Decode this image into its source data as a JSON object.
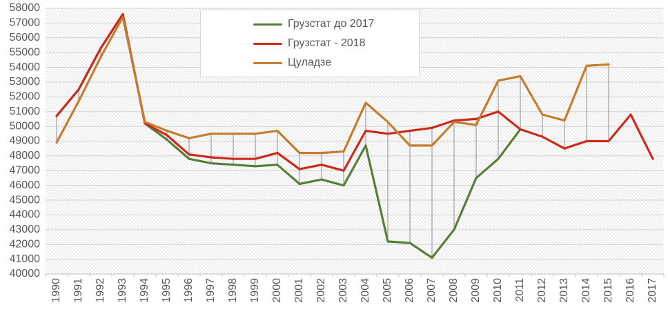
{
  "chart_data": {
    "type": "line",
    "title": "",
    "xlabel": "",
    "ylabel": "",
    "x_categories": [
      "1990",
      "1991",
      "1992",
      "1993",
      "1994",
      "1995",
      "1996",
      "1997",
      "1998",
      "1999",
      "2000",
      "2001",
      "2002",
      "2003",
      "2004",
      "2005",
      "2006",
      "2007",
      "2008",
      "2009",
      "2010",
      "2011",
      "2012",
      "2013",
      "2014",
      "2015",
      "2016",
      "2017"
    ],
    "ylim": [
      40000,
      58000
    ],
    "yticks": [
      40000,
      41000,
      42000,
      43000,
      44000,
      45000,
      46000,
      47000,
      48000,
      49000,
      50000,
      51000,
      52000,
      53000,
      54000,
      55000,
      56000,
      57000,
      58000
    ],
    "grid": "horizontal",
    "legend_position": "top-center",
    "plot_background": "diagonal-hatch",
    "high_low_lines": true,
    "series": [
      {
        "name": "Грузстат до 2017",
        "color": "#567f39",
        "values": [
          50700,
          52500,
          55300,
          57600,
          50200,
          49100,
          47800,
          47500,
          47400,
          47300,
          47400,
          46100,
          46400,
          46000,
          48700,
          42200,
          42100,
          41100,
          43000,
          46500,
          47800,
          49800,
          null,
          null,
          null,
          null,
          null,
          null
        ]
      },
      {
        "name": "Грузстат - 2018",
        "color": "#cd2a1e",
        "values": [
          50700,
          52500,
          55300,
          57600,
          50200,
          49400,
          48100,
          47900,
          47800,
          47800,
          48200,
          47100,
          47400,
          47000,
          49700,
          49500,
          49700,
          49900,
          50400,
          50500,
          51000,
          49800,
          49300,
          48500,
          49000,
          49000,
          50800,
          47800
        ]
      },
      {
        "name": "Цуладзе",
        "color": "#c37d2d",
        "values": [
          48900,
          51700,
          54700,
          57400,
          50300,
          49700,
          49200,
          49500,
          49500,
          49500,
          49700,
          48200,
          48200,
          48300,
          51600,
          50300,
          48700,
          48700,
          50300,
          50100,
          53100,
          53400,
          50800,
          50400,
          54100,
          54200,
          null,
          null
        ]
      }
    ],
    "colors": {
      "axis_label": "#595959",
      "gridline": "#d2d2d2",
      "axis_line": "#bfbfbf",
      "high_low_line": "#8c8c8c",
      "hatch": "#e3e3e3"
    }
  }
}
